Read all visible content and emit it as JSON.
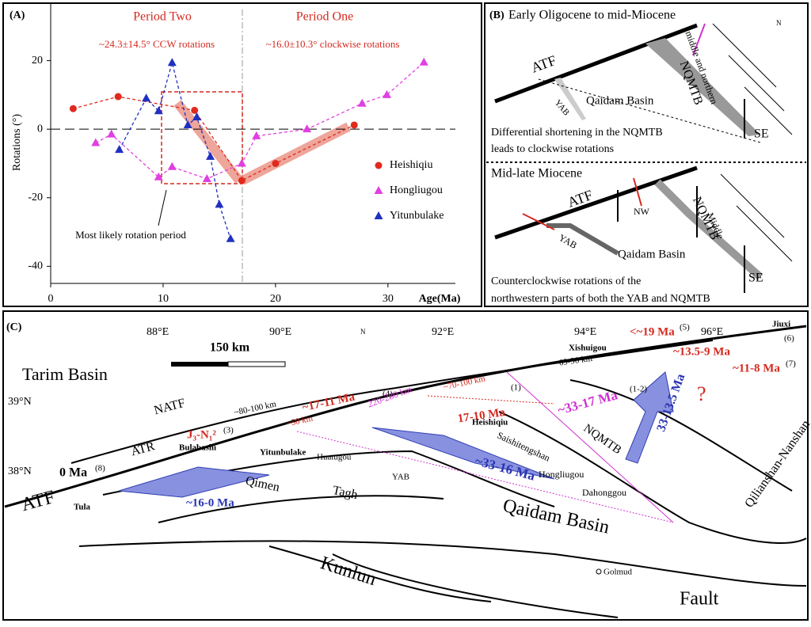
{
  "chart_data": {
    "type": "line",
    "panel_label": "(A)",
    "y_label": "Rotations (°)",
    "x_label": "Age(Ma)",
    "annotations": [
      "Period Two",
      "Period One",
      "~24.3±14.5° CCW rotations",
      "~16.0±10.3° clockwise rotations",
      "Most likely rotation period"
    ],
    "xlim": [
      0,
      36
    ],
    "ylim": [
      -45,
      37
    ],
    "xticks": [
      0,
      10,
      20,
      30
    ],
    "yticks": [
      -40,
      -20,
      0,
      20
    ],
    "series": [
      {
        "name": "Heishiqiu",
        "color": "#e02a1e",
        "marker": "circle",
        "x": [
          2,
          6,
          12.8,
          17,
          20,
          27
        ],
        "values": [
          6,
          9.5,
          5.5,
          -15,
          -10,
          1.2
        ]
      },
      {
        "name": "Hongliugou",
        "color": "#e040e0",
        "marker": "triangle",
        "x": [
          4,
          5.4,
          9.6,
          10.8,
          13.9,
          17,
          18.3,
          22.8,
          27.7,
          29.9,
          33.2
        ],
        "values": [
          -4,
          -1.5,
          -14,
          -11,
          -14.5,
          -10,
          -2,
          0,
          7.5,
          10,
          19.5
        ]
      },
      {
        "name": "Yitunbulake",
        "color": "#2030c0",
        "marker": "triangle",
        "x": [
          6.1,
          8.5,
          9.6,
          10.8,
          12.2,
          13,
          14.2,
          15,
          16
        ],
        "values": [
          -6,
          9,
          5.3,
          19.4,
          1.2,
          3.5,
          -8,
          -22,
          -32
        ]
      }
    ]
  },
  "panel_b": {
    "label": "(B)",
    "top_title": "Early Oligocene to mid-Miocene",
    "atf1": "ATF",
    "yab1": "YAB",
    "qb1": "Qaidam Basin",
    "nqmtb1": "NQMTB",
    "mn": "middle and northern",
    "se1": "SE",
    "n": "N",
    "caption1": [
      "Differential shortening in the NQMTB",
      "leads to clockwise rotations"
    ],
    "bottom_title": "Mid-late Miocene",
    "atf2": "ATF",
    "nw": "NW",
    "yab2": "YAB",
    "qb2": "Qaidam Basin",
    "nqmtb2": "NQMTB",
    "middle": "Middle",
    "se2": "SE",
    "caption2": [
      "Counterclockwise rotations of the",
      "northwestern parts of both the YAB and NQMTB"
    ]
  },
  "panel_c": {
    "label": "(C)",
    "lon": [
      "88°E",
      "90°E",
      "92°E",
      "94°E",
      "96°E"
    ],
    "lat": [
      "39°N",
      "38°N"
    ],
    "scale": "150 km",
    "north": "N",
    "tarim": "Tarim Basin",
    "natf": "NATF",
    "atr": "ATR",
    "atf": "ATF",
    "tula_age": "0 Ma",
    "tula_ref": "(8)",
    "bula_age": "J₃-N₁²",
    "bula_ref": "(3)",
    "bulabashi": "Bulabashi",
    "yitunbulake": "Yitunbulake",
    "huatugou": "Huatugou",
    "yab": "YAB",
    "tula": "Tula",
    "rot1": "~16-0 Ma",
    "qimen": "Qimen",
    "tagh": "Tagh",
    "d1": "~80-100 km",
    "d2": "~50 km",
    "age_y": "~17-11 Ma",
    "ref_y": "(4)",
    "d3": "220-280 km",
    "d4": "~70-100 km",
    "age_h": "17-10 Ma",
    "ref_h": "(1)",
    "heishiqiu": "Heishiqiu",
    "saishi": "Saishitengshan",
    "rot2": "~33-16 Ma",
    "rot3": "~33-17 Ma",
    "ref3": "(1-2)",
    "nqmtb": "NQMTB",
    "hongliugou": "Hongliugou",
    "dahonggou": "Dahonggou",
    "qaidam": "Qaidam Basin",
    "rot4": "33-13.5 Ma",
    "q": "?",
    "qilian": "Qilianshan-Nanshan",
    "xishuigou": "Xishuigou",
    "age_x": "<~19 Ma",
    "ref_x": "(5)",
    "d5": "~69-90 km",
    "jiuxi": "Jiuxi",
    "ref_j": "(6)",
    "age_j1": "~13.5-9 Ma",
    "age_j2": "~11-8 Ma",
    "ref_j2": "(7)",
    "kunlun": "Kunlun",
    "fault": "Fault",
    "golmud": "Golmud"
  }
}
